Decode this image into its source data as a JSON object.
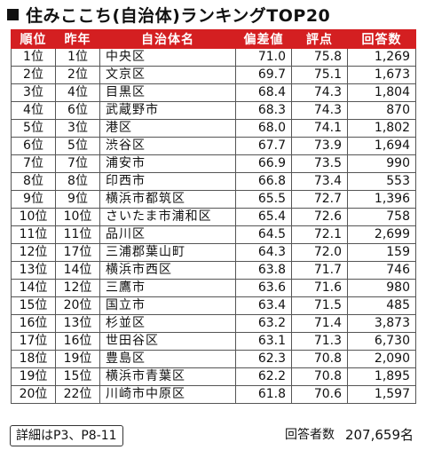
{
  "title": "住みここち(自治体)ランキングTOP20",
  "columns": [
    "順位",
    "昨年",
    "自治体名",
    "偏差値",
    "評点",
    "回答数"
  ],
  "rows": [
    {
      "rank": "1位",
      "prev": "1位",
      "name": "中央区",
      "dev": "71.0",
      "score": "75.8",
      "count": "1,269"
    },
    {
      "rank": "2位",
      "prev": "2位",
      "name": "文京区",
      "dev": "69.7",
      "score": "75.1",
      "count": "1,673"
    },
    {
      "rank": "3位",
      "prev": "4位",
      "name": "目黒区",
      "dev": "68.4",
      "score": "74.3",
      "count": "1,804"
    },
    {
      "rank": "4位",
      "prev": "6位",
      "name": "武蔵野市",
      "dev": "68.3",
      "score": "74.3",
      "count": "870"
    },
    {
      "rank": "5位",
      "prev": "3位",
      "name": "港区",
      "dev": "68.0",
      "score": "74.1",
      "count": "1,802"
    },
    {
      "rank": "6位",
      "prev": "5位",
      "name": "渋谷区",
      "dev": "67.7",
      "score": "73.9",
      "count": "1,694"
    },
    {
      "rank": "7位",
      "prev": "7位",
      "name": "浦安市",
      "dev": "66.9",
      "score": "73.5",
      "count": "990"
    },
    {
      "rank": "8位",
      "prev": "8位",
      "name": "印西市",
      "dev": "66.8",
      "score": "73.4",
      "count": "553"
    },
    {
      "rank": "9位",
      "prev": "9位",
      "name": "横浜市都筑区",
      "dev": "65.5",
      "score": "72.7",
      "count": "1,396"
    },
    {
      "rank": "10位",
      "prev": "10位",
      "name": "さいたま市浦和区",
      "dev": "65.4",
      "score": "72.6",
      "count": "758"
    },
    {
      "rank": "11位",
      "prev": "11位",
      "name": "品川区",
      "dev": "64.5",
      "score": "72.1",
      "count": "2,699"
    },
    {
      "rank": "12位",
      "prev": "17位",
      "name": "三浦郡葉山町",
      "dev": "64.3",
      "score": "72.0",
      "count": "159"
    },
    {
      "rank": "13位",
      "prev": "14位",
      "name": "横浜市西区",
      "dev": "63.8",
      "score": "71.7",
      "count": "746"
    },
    {
      "rank": "14位",
      "prev": "12位",
      "name": "三鷹市",
      "dev": "63.6",
      "score": "71.6",
      "count": "980"
    },
    {
      "rank": "15位",
      "prev": "20位",
      "name": "国立市",
      "dev": "63.4",
      "score": "71.5",
      "count": "485"
    },
    {
      "rank": "16位",
      "prev": "13位",
      "name": "杉並区",
      "dev": "63.2",
      "score": "71.4",
      "count": "3,873"
    },
    {
      "rank": "17位",
      "prev": "16位",
      "name": "世田谷区",
      "dev": "63.1",
      "score": "71.3",
      "count": "6,730"
    },
    {
      "rank": "18位",
      "prev": "19位",
      "name": "豊島区",
      "dev": "62.3",
      "score": "70.8",
      "count": "2,090"
    },
    {
      "rank": "19位",
      "prev": "15位",
      "name": "横浜市青葉区",
      "dev": "62.2",
      "score": "70.8",
      "count": "1,895"
    },
    {
      "rank": "20位",
      "prev": "22位",
      "name": "川崎市中原区",
      "dev": "61.8",
      "score": "70.6",
      "count": "1,597"
    }
  ],
  "footer": {
    "details": "詳細はP3、P8-11",
    "respondents_label": "回答者数",
    "respondents_value": "207,659名"
  },
  "colors": {
    "header_bg": "#d41f21",
    "header_text": "#ffffff"
  }
}
